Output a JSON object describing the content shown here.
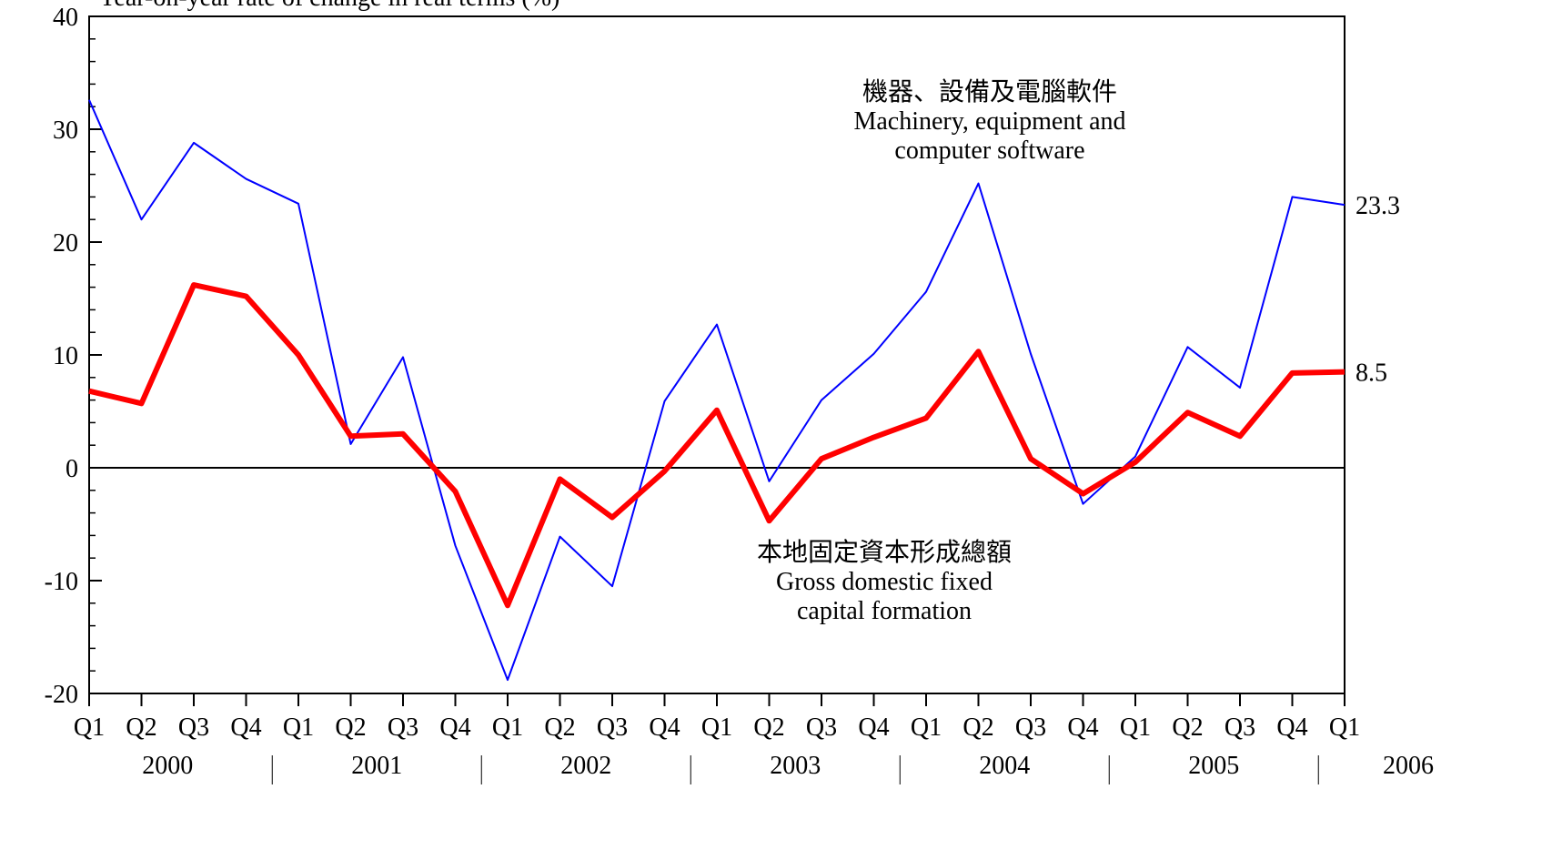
{
  "chart_data": {
    "type": "line",
    "title": "Year-on-year rate of change in real terms (%)",
    "categories": [
      "Q1",
      "Q2",
      "Q3",
      "Q4",
      "Q1",
      "Q2",
      "Q3",
      "Q4",
      "Q1",
      "Q2",
      "Q3",
      "Q4",
      "Q1",
      "Q2",
      "Q3",
      "Q4",
      "Q1",
      "Q2",
      "Q3",
      "Q4",
      "Q1",
      "Q2",
      "Q3",
      "Q4",
      "Q1"
    ],
    "years": [
      "2000",
      "2001",
      "2002",
      "2003",
      "2004",
      "2005",
      "2006"
    ],
    "series": [
      {
        "name": "Machinery, equipment and computer software",
        "color": "#0000ff",
        "width": 2,
        "values": [
          32.6,
          22.0,
          28.8,
          25.6,
          23.4,
          2.1,
          9.8,
          -6.9,
          -18.8,
          -6.1,
          -10.5,
          5.9,
          12.7,
          -1.2,
          6.0,
          10.1,
          15.6,
          25.2,
          10.1,
          -3.2,
          1.0,
          10.7,
          7.1,
          24.0,
          23.3
        ]
      },
      {
        "name": "Gross domestic fixed capital formation",
        "color": "#ff0000",
        "width": 6,
        "values": [
          6.8,
          5.7,
          16.2,
          15.2,
          10.0,
          2.8,
          3.0,
          -2.1,
          -12.2,
          -1.0,
          -4.4,
          -0.3,
          5.1,
          -4.7,
          0.8,
          2.7,
          4.4,
          10.3,
          0.8,
          -2.3,
          0.5,
          4.9,
          2.8,
          8.4,
          8.5
        ]
      }
    ],
    "annotations": [
      {
        "lines": [
          "機器、設備及電腦軟件",
          "Machinery, equipment and",
          "computer software"
        ]
      },
      {
        "lines": [
          "本地固定資本形成總額",
          "Gross domestic fixed",
          "capital formation"
        ]
      }
    ],
    "ylim": [
      -20,
      40
    ],
    "yticks": [
      -20,
      -10,
      0,
      10,
      20,
      30,
      40
    ],
    "yminorticks": [
      -18,
      -16,
      -14,
      -12,
      -8,
      -6,
      -4,
      -2,
      2,
      4,
      6,
      8,
      12,
      14,
      16,
      18,
      22,
      24,
      26,
      28,
      32,
      34,
      36,
      38
    ]
  }
}
